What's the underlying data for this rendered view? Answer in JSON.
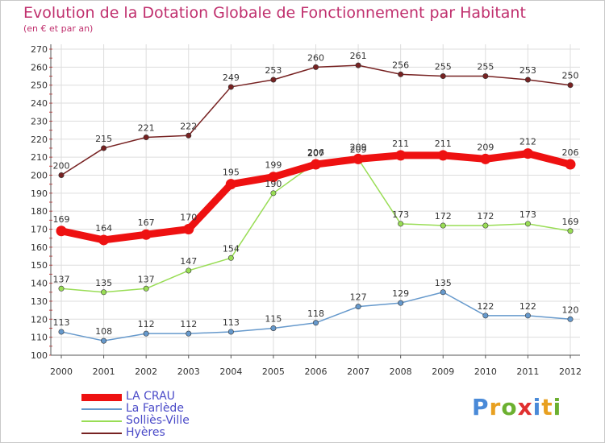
{
  "chart_data": {
    "type": "line",
    "title": "Evolution de la Dotation Globale de Fonctionnement par Habitant",
    "subtitle": "(en € et par an)",
    "x": [
      "2000",
      "2001",
      "2002",
      "2003",
      "2004",
      "2005",
      "2006",
      "2007",
      "2008",
      "2009",
      "2010",
      "2011",
      "2012"
    ],
    "ylim": [
      100,
      270
    ],
    "yticks": [
      100,
      110,
      120,
      130,
      140,
      150,
      160,
      170,
      180,
      190,
      200,
      210,
      220,
      230,
      240,
      250,
      260,
      270
    ],
    "grid": true,
    "legend_position": "bottom-left",
    "series": [
      {
        "name": "LA CRAU",
        "color": "#ee1111",
        "width": 9,
        "values": [
          169,
          164,
          167,
          170,
          195,
          199,
          206,
          209,
          211,
          211,
          209,
          212,
          206
        ]
      },
      {
        "name": "La Farlède",
        "color": "#6699cc",
        "width": 1.5,
        "values": [
          113,
          108,
          112,
          112,
          113,
          115,
          118,
          127,
          129,
          135,
          122,
          122,
          120
        ]
      },
      {
        "name": "Solliès-Ville",
        "color": "#99dd55",
        "width": 1.5,
        "values": [
          137,
          135,
          137,
          147,
          154,
          190,
          207,
          209,
          173,
          172,
          172,
          173,
          169
        ]
      },
      {
        "name": "Hyères",
        "color": "#772222",
        "width": 1.5,
        "values": [
          200,
          215,
          221,
          222,
          249,
          253,
          260,
          261,
          256,
          255,
          255,
          253,
          250
        ]
      }
    ]
  },
  "brand": {
    "letters": [
      {
        "char": "P",
        "color": "#4a8ad8"
      },
      {
        "char": "r",
        "color": "#e8a020"
      },
      {
        "char": "o",
        "color": "#6cb030"
      },
      {
        "char": "x",
        "color": "#e03030"
      },
      {
        "char": "i",
        "color": "#4a8ad8"
      },
      {
        "char": "t",
        "color": "#e8a020"
      },
      {
        "char": "i",
        "color": "#6cb030"
      }
    ]
  }
}
